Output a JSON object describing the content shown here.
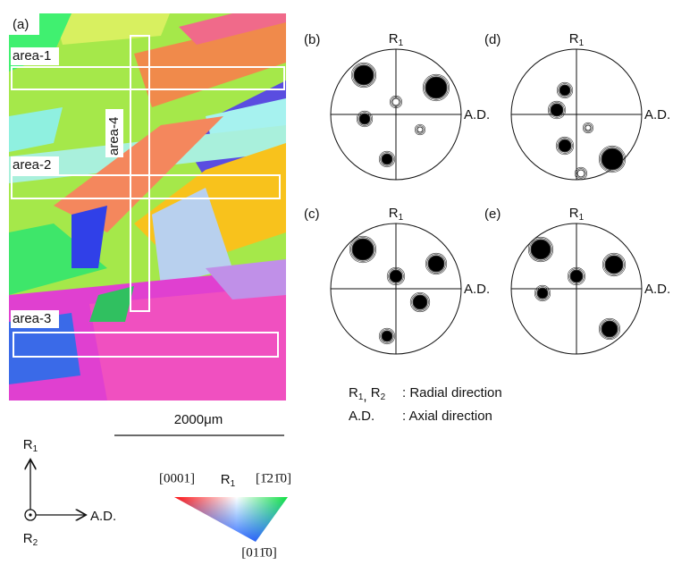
{
  "panel_a": {
    "label": "(a)",
    "areas": [
      "area-1",
      "area-2",
      "area-3",
      "area-4"
    ],
    "scale_bar": "2000μm"
  },
  "axes_key": {
    "r1": {
      "base": "R",
      "sub": "1"
    },
    "r2": {
      "base": "R",
      "sub": "2"
    },
    "ad": "A.D."
  },
  "color_key": {
    "corner_left": "[0001]",
    "corner_right": "[1̄21̄0]",
    "corner_bottom": "[011̄0]",
    "label": {
      "base": "R",
      "sub": "1"
    }
  },
  "pole_figures": [
    {
      "label": "(b)",
      "top": {
        "base": "R",
        "sub": "1"
      },
      "right": "A.D."
    },
    {
      "label": "(d)",
      "top": {
        "base": "R",
        "sub": "1"
      },
      "right": "A.D."
    },
    {
      "label": "(c)",
      "top": {
        "base": "R",
        "sub": "1"
      },
      "right": "A.D."
    },
    {
      "label": "(e)",
      "top": {
        "base": "R",
        "sub": "1"
      },
      "right": "A.D."
    }
  ],
  "legend": [
    {
      "terms": [
        {
          "base": "R",
          "sub": "1"
        },
        {
          "base": "R",
          "sub": "2"
        }
      ],
      "joiner": ", ",
      "definition": ": Radial direction"
    },
    {
      "terms": [
        {
          "base": "A.D."
        }
      ],
      "definition": ": Axial direction"
    }
  ]
}
